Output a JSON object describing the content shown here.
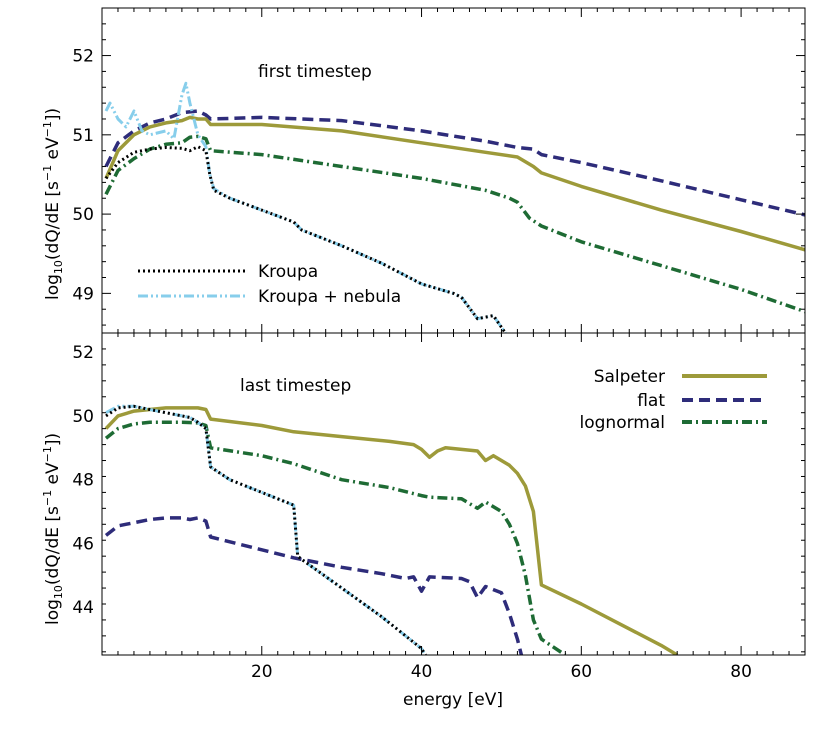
{
  "chart_data": [
    {
      "type": "line",
      "panel": "top",
      "title": "first timestep",
      "xlabel": "",
      "ylabel": "log10(dQ/dE [s^-1 eV^-1])",
      "xlim": [
        0,
        88
      ],
      "ylim": [
        48.5,
        52.6
      ],
      "yticks": [
        "49",
        "50",
        "51",
        "52"
      ],
      "legend": {
        "placement": "bottom-left",
        "entries": [
          "Kroupa",
          "Kroupa + nebula"
        ]
      },
      "series": [
        {
          "name": "Salpeter",
          "color": "#9d9a3a",
          "style": "solid",
          "points": [
            [
              0.5,
              50.45
            ],
            [
              2,
              50.8
            ],
            [
              4,
              51.0
            ],
            [
              6,
              51.1
            ],
            [
              8,
              51.15
            ],
            [
              10,
              51.18
            ],
            [
              11,
              51.22
            ],
            [
              12,
              51.2
            ],
            [
              13,
              51.2
            ],
            [
              13.6,
              51.13
            ],
            [
              20,
              51.13
            ],
            [
              30,
              51.05
            ],
            [
              40,
              50.9
            ],
            [
              48,
              50.78
            ],
            [
              52,
              50.72
            ],
            [
              54,
              50.6
            ],
            [
              55,
              50.52
            ],
            [
              60,
              50.35
            ],
            [
              70,
              50.05
            ],
            [
              80,
              49.78
            ],
            [
              88,
              49.55
            ]
          ]
        },
        {
          "name": "flat",
          "color": "#2e2c7a",
          "style": "dashed",
          "points": [
            [
              0.5,
              50.6
            ],
            [
              2,
              50.9
            ],
            [
              4,
              51.05
            ],
            [
              6,
              51.15
            ],
            [
              8,
              51.2
            ],
            [
              10,
              51.28
            ],
            [
              12,
              51.3
            ],
            [
              13,
              51.25
            ],
            [
              13.6,
              51.2
            ],
            [
              20,
              51.22
            ],
            [
              30,
              51.18
            ],
            [
              40,
              51.05
            ],
            [
              48,
              50.92
            ],
            [
              52,
              50.84
            ],
            [
              54,
              50.82
            ],
            [
              55,
              50.75
            ],
            [
              60,
              50.65
            ],
            [
              70,
              50.42
            ],
            [
              80,
              50.18
            ],
            [
              88,
              49.99
            ]
          ]
        },
        {
          "name": "lognormal",
          "color": "#1e6b34",
          "style": "dashdot",
          "points": [
            [
              0.5,
              50.25
            ],
            [
              2,
              50.55
            ],
            [
              4,
              50.7
            ],
            [
              6,
              50.82
            ],
            [
              8,
              50.88
            ],
            [
              10,
              50.9
            ],
            [
              11,
              50.97
            ],
            [
              12,
              50.98
            ],
            [
              13,
              50.95
            ],
            [
              13.6,
              50.8
            ],
            [
              20,
              50.75
            ],
            [
              30,
              50.6
            ],
            [
              40,
              50.45
            ],
            [
              48,
              50.3
            ],
            [
              51,
              50.2
            ],
            [
              52,
              50.15
            ],
            [
              53.5,
              49.95
            ],
            [
              55,
              49.85
            ],
            [
              60,
              49.65
            ],
            [
              70,
              49.35
            ],
            [
              80,
              49.05
            ],
            [
              88,
              48.77
            ]
          ]
        },
        {
          "name": "Kroupa",
          "color": "#000000",
          "style": "dotted",
          "points": [
            [
              0.5,
              50.45
            ],
            [
              2,
              50.65
            ],
            [
              4,
              50.78
            ],
            [
              6,
              50.82
            ],
            [
              8,
              50.84
            ],
            [
              10,
              50.83
            ],
            [
              11,
              50.8
            ],
            [
              12,
              50.85
            ],
            [
              13,
              50.8
            ],
            [
              13.5,
              50.5
            ],
            [
              14,
              50.3
            ],
            [
              16,
              50.2
            ],
            [
              20,
              50.05
            ],
            [
              24,
              49.9
            ],
            [
              25,
              49.8
            ],
            [
              30,
              49.6
            ],
            [
              35,
              49.38
            ],
            [
              40,
              49.12
            ],
            [
              44,
              49.0
            ],
            [
              45,
              48.95
            ],
            [
              47,
              48.68
            ],
            [
              49,
              48.72
            ],
            [
              50.5,
              48.5
            ]
          ]
        },
        {
          "name": "Kroupa + nebula",
          "color": "#87ceeb",
          "style": "dashdotdot",
          "points": [
            [
              0.5,
              51.3
            ],
            [
              1,
              51.4
            ],
            [
              2,
              51.2
            ],
            [
              3,
              51.1
            ],
            [
              4,
              51.3
            ],
            [
              5,
              51.05
            ],
            [
              6,
              51.0
            ],
            [
              8,
              51.05
            ],
            [
              9,
              50.95
            ],
            [
              10,
              51.5
            ],
            [
              10.5,
              51.65
            ],
            [
              11,
              51.4
            ],
            [
              12,
              51.0
            ],
            [
              13,
              50.85
            ],
            [
              13.5,
              50.5
            ],
            [
              14,
              50.32
            ],
            [
              16,
              50.2
            ],
            [
              20,
              50.05
            ],
            [
              24,
              49.9
            ],
            [
              25,
              49.8
            ],
            [
              30,
              49.6
            ],
            [
              35,
              49.38
            ],
            [
              40,
              49.12
            ],
            [
              44,
              49.0
            ],
            [
              45,
              48.95
            ],
            [
              47,
              48.68
            ],
            [
              49,
              48.72
            ],
            [
              50.5,
              48.5
            ]
          ]
        }
      ]
    },
    {
      "type": "line",
      "panel": "bottom",
      "title": "last timestep",
      "xlabel": "energy [eV]",
      "ylabel": "log10(dQ/dE [s^-1 eV^-1])",
      "xlim": [
        0,
        88
      ],
      "ylim": [
        42.5,
        52.6
      ],
      "xticks": [
        "20",
        "40",
        "60",
        "80"
      ],
      "yticks": [
        "44",
        "46",
        "48",
        "50",
        "52"
      ],
      "legend": {
        "placement": "top-right",
        "entries": [
          "Salpeter",
          "flat",
          "lognormal"
        ]
      },
      "series": [
        {
          "name": "Salpeter",
          "color": "#9d9a3a",
          "style": "solid",
          "points": [
            [
              0.5,
              49.6
            ],
            [
              2,
              50.0
            ],
            [
              4,
              50.15
            ],
            [
              6,
              50.2
            ],
            [
              8,
              50.25
            ],
            [
              10,
              50.25
            ],
            [
              12,
              50.25
            ],
            [
              13,
              50.2
            ],
            [
              13.6,
              49.9
            ],
            [
              20,
              49.7
            ],
            [
              24,
              49.5
            ],
            [
              30,
              49.35
            ],
            [
              36,
              49.2
            ],
            [
              39,
              49.1
            ],
            [
              40,
              48.95
            ],
            [
              41,
              48.7
            ],
            [
              42,
              48.9
            ],
            [
              43,
              49.0
            ],
            [
              47,
              48.9
            ],
            [
              48,
              48.6
            ],
            [
              49,
              48.75
            ],
            [
              50,
              48.6
            ],
            [
              51,
              48.45
            ],
            [
              52,
              48.2
            ],
            [
              53,
              47.8
            ],
            [
              54,
              47.0
            ],
            [
              55,
              44.7
            ],
            [
              60,
              44.1
            ],
            [
              70,
              42.8
            ],
            [
              72,
              42.5
            ]
          ]
        },
        {
          "name": "flat",
          "color": "#2e2c7a",
          "style": "dashed",
          "points": [
            [
              0.5,
              46.25
            ],
            [
              2,
              46.55
            ],
            [
              4,
              46.65
            ],
            [
              6,
              46.75
            ],
            [
              8,
              46.8
            ],
            [
              10,
              46.8
            ],
            [
              11,
              46.75
            ],
            [
              12,
              46.8
            ],
            [
              13,
              46.7
            ],
            [
              13.6,
              46.2
            ],
            [
              20,
              45.8
            ],
            [
              24,
              45.55
            ],
            [
              25,
              45.5
            ],
            [
              30,
              45.25
            ],
            [
              35,
              45.05
            ],
            [
              38,
              44.9
            ],
            [
              39,
              44.95
            ],
            [
              40,
              44.5
            ],
            [
              41,
              44.95
            ],
            [
              45,
              44.9
            ],
            [
              46,
              44.8
            ],
            [
              47,
              44.3
            ],
            [
              48,
              44.65
            ],
            [
              50,
              44.45
            ],
            [
              51,
              43.8
            ],
            [
              52,
              43.0
            ],
            [
              52.5,
              42.5
            ]
          ]
        },
        {
          "name": "lognormal",
          "color": "#1e6b34",
          "style": "dashdot",
          "points": [
            [
              0.5,
              49.3
            ],
            [
              2,
              49.6
            ],
            [
              4,
              49.75
            ],
            [
              6,
              49.8
            ],
            [
              8,
              49.8
            ],
            [
              10,
              49.8
            ],
            [
              12,
              49.78
            ],
            [
              13,
              49.7
            ],
            [
              13.6,
              49.0
            ],
            [
              20,
              48.75
            ],
            [
              24,
              48.5
            ],
            [
              30,
              48.0
            ],
            [
              36,
              47.75
            ],
            [
              40,
              47.5
            ],
            [
              41,
              47.45
            ],
            [
              45,
              47.4
            ],
            [
              47,
              47.1
            ],
            [
              48,
              47.3
            ],
            [
              50,
              47.0
            ],
            [
              51,
              46.6
            ],
            [
              52,
              46.0
            ],
            [
              53,
              45.0
            ],
            [
              54,
              43.6
            ],
            [
              55,
              43.0
            ],
            [
              58,
              42.5
            ]
          ]
        },
        {
          "name": "Kroupa",
          "color": "#000000",
          "style": "dotted",
          "points": [
            [
              0.5,
              50.0
            ],
            [
              2,
              50.25
            ],
            [
              4,
              50.3
            ],
            [
              6,
              50.2
            ],
            [
              8,
              50.1
            ],
            [
              10,
              50.0
            ],
            [
              11,
              49.95
            ],
            [
              12,
              49.8
            ],
            [
              13,
              49.6
            ],
            [
              13.6,
              48.4
            ],
            [
              16,
              48.0
            ],
            [
              20,
              47.6
            ],
            [
              23,
              47.3
            ],
            [
              24,
              47.2
            ],
            [
              24.5,
              45.6
            ],
            [
              25,
              45.5
            ],
            [
              30,
              44.6
            ],
            [
              35,
              43.7
            ],
            [
              40,
              42.7
            ],
            [
              40.5,
              42.5
            ]
          ]
        },
        {
          "name": "Kroupa + nebula",
          "color": "#87ceeb",
          "style": "dashdotdot",
          "points": [
            [
              0.5,
              50.1
            ],
            [
              2,
              50.3
            ],
            [
              4,
              50.3
            ],
            [
              6,
              50.2
            ],
            [
              8,
              50.1
            ],
            [
              10,
              50.0
            ],
            [
              11,
              49.95
            ],
            [
              12,
              49.8
            ],
            [
              13,
              49.6
            ],
            [
              13.6,
              48.4
            ],
            [
              16,
              48.0
            ],
            [
              20,
              47.6
            ],
            [
              23,
              47.3
            ],
            [
              24,
              47.2
            ],
            [
              24.5,
              45.6
            ],
            [
              25,
              45.5
            ],
            [
              30,
              44.6
            ],
            [
              35,
              43.7
            ],
            [
              40,
              42.7
            ],
            [
              40.5,
              42.5
            ]
          ]
        }
      ]
    }
  ]
}
